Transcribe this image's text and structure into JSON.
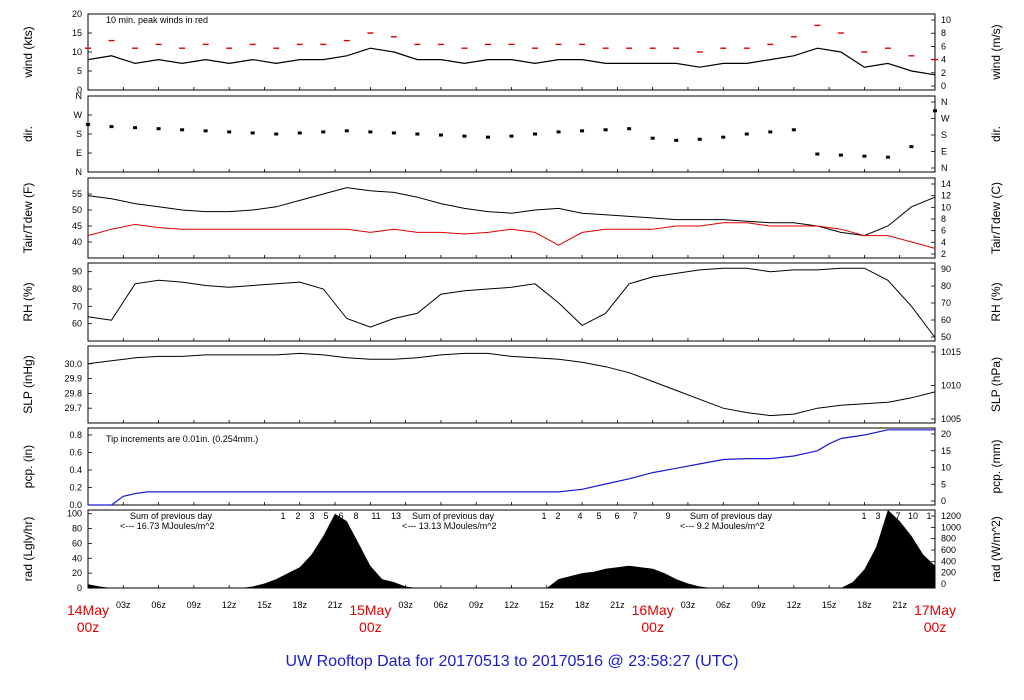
{
  "title": "UW Rooftop Data for 20170513  to  20170516 @ 23:58:27  (UTC)",
  "colors": {
    "black": "#000000",
    "red": "#e00000",
    "blue": "#1a1ad0",
    "purple": "#9a22d6"
  },
  "time_axis": {
    "range_hours": [
      0,
      72
    ],
    "hour_ticks": [
      "03z",
      "06z",
      "09z",
      "12z",
      "15z",
      "18z",
      "21z"
    ],
    "dates": [
      {
        "hour": 0,
        "label": "14May",
        "sub": "00z"
      },
      {
        "hour": 24,
        "label": "15May",
        "sub": "00z"
      },
      {
        "hour": 48,
        "label": "16May",
        "sub": "00z"
      },
      {
        "hour": 72,
        "label": "17May",
        "sub": "00z"
      }
    ]
  },
  "chart_data": [
    {
      "type": "line",
      "panel": "wind",
      "ylabel_left": "wind (kts)",
      "ylabel_right": "wind (m/s)",
      "ylim": [
        0,
        20
      ],
      "yticks_left": [
        0,
        5,
        10,
        15,
        20
      ],
      "yticks_right": [
        0,
        2,
        4,
        6,
        8,
        10
      ],
      "annotation": "10 min. peak winds in red",
      "x": [
        0,
        2,
        4,
        6,
        8,
        10,
        12,
        14,
        16,
        18,
        20,
        22,
        24,
        26,
        28,
        30,
        32,
        34,
        36,
        38,
        40,
        42,
        44,
        46,
        48,
        50,
        52,
        54,
        56,
        58,
        60,
        62,
        64,
        66,
        68,
        70,
        72
      ],
      "series": [
        {
          "values": [
            8,
            9,
            7,
            8,
            7,
            8,
            7,
            8,
            7,
            8,
            8,
            9,
            11,
            10,
            8,
            8,
            7,
            8,
            8,
            7,
            8,
            8,
            7,
            7,
            7,
            7,
            6,
            7,
            7,
            8,
            9,
            11,
            10,
            6,
            7,
            5,
            4
          ]
        },
        {
          "values": [
            11,
            13,
            11,
            12,
            11,
            12,
            11,
            12,
            11,
            12,
            12,
            13,
            15,
            14,
            12,
            12,
            11,
            12,
            12,
            11,
            12,
            12,
            11,
            11,
            11,
            11,
            10,
            11,
            11,
            12,
            14,
            17,
            15,
            10,
            11,
            9,
            8
          ]
        }
      ]
    },
    {
      "type": "scatter",
      "panel": "dir",
      "ylabel_left": "dir.",
      "ylabel_right": "dir.",
      "ylim": [
        0,
        360
      ],
      "yticks_left": [
        "N",
        "E",
        "S",
        "W",
        "N"
      ],
      "yticks_right": [
        "N",
        "E",
        "S",
        "W",
        "N"
      ],
      "x": [
        0,
        2,
        4,
        6,
        8,
        10,
        12,
        14,
        16,
        18,
        20,
        22,
        24,
        26,
        28,
        30,
        32,
        34,
        36,
        38,
        40,
        42,
        44,
        46,
        48,
        50,
        52,
        54,
        56,
        58,
        60,
        62,
        64,
        66,
        68,
        70,
        72
      ],
      "values": [
        225,
        215,
        210,
        205,
        200,
        195,
        190,
        185,
        180,
        185,
        190,
        195,
        190,
        185,
        180,
        175,
        170,
        165,
        170,
        180,
        190,
        195,
        200,
        205,
        160,
        150,
        155,
        165,
        180,
        190,
        200,
        85,
        80,
        75,
        70,
        120,
        290
      ]
    },
    {
      "type": "line",
      "panel": "temp",
      "ylabel_left": "Tair/Tdew (F)",
      "ylabel_right": "Tair/Tdew (C)",
      "ylim": [
        35,
        60
      ],
      "yticks_left": [
        40,
        45,
        50,
        55
      ],
      "yticks_right": [
        2,
        4,
        6,
        8,
        10,
        12,
        14
      ],
      "x": [
        0,
        2,
        4,
        6,
        8,
        10,
        12,
        14,
        16,
        18,
        20,
        22,
        24,
        26,
        28,
        30,
        32,
        34,
        36,
        38,
        40,
        42,
        44,
        46,
        48,
        50,
        52,
        54,
        56,
        58,
        60,
        62,
        64,
        66,
        68,
        70,
        72
      ],
      "series": [
        {
          "values": [
            54.5,
            53.5,
            52,
            51,
            50,
            49.5,
            49.5,
            50,
            51,
            53,
            55,
            57,
            56,
            55.5,
            54,
            52,
            50.5,
            49.5,
            49,
            50,
            50.5,
            49,
            48.5,
            48,
            47.5,
            47,
            47,
            47,
            46.5,
            46,
            46,
            45,
            43,
            42,
            45,
            51,
            54
          ]
        },
        {
          "values": [
            42,
            44,
            45.5,
            44.5,
            44,
            44,
            44,
            44,
            44,
            44,
            44,
            44,
            43,
            44,
            43,
            43,
            42.5,
            43,
            44,
            43,
            39,
            43,
            44,
            44,
            44,
            45,
            45,
            46,
            46,
            45,
            45,
            45,
            44,
            42,
            42,
            40,
            38
          ]
        }
      ]
    },
    {
      "type": "line",
      "panel": "rh",
      "ylabel_left": "RH (%)",
      "ylabel_right": "RH (%)",
      "ylim": [
        50,
        95
      ],
      "yticks_left": [
        60,
        70,
        80,
        90
      ],
      "yticks_right": [
        50,
        60,
        70,
        80,
        90
      ],
      "x": [
        0,
        2,
        4,
        6,
        8,
        10,
        12,
        14,
        16,
        18,
        20,
        22,
        24,
        26,
        28,
        30,
        32,
        34,
        36,
        38,
        40,
        42,
        44,
        46,
        48,
        50,
        52,
        54,
        56,
        58,
        60,
        62,
        64,
        66,
        68,
        70,
        72
      ],
      "values": [
        64,
        62,
        83,
        85,
        84,
        82,
        81,
        82,
        83,
        84,
        80,
        63,
        58,
        63,
        66,
        77,
        79,
        80,
        81,
        83,
        72,
        59,
        66,
        83,
        87,
        89,
        91,
        92,
        92,
        90,
        91,
        91,
        92,
        92,
        85,
        70,
        52
      ]
    },
    {
      "type": "line",
      "panel": "slp",
      "ylabel_left": "SLP (inHg)",
      "ylabel_right": "SLP (hPa)",
      "ylim": [
        29.6,
        30.12
      ],
      "yticks_left": [
        "29.7",
        "29.8",
        "29.9",
        "30.0"
      ],
      "yticks_right": [
        1005,
        1010,
        1015
      ],
      "x": [
        0,
        2,
        4,
        6,
        8,
        10,
        12,
        14,
        16,
        18,
        20,
        22,
        24,
        26,
        28,
        30,
        32,
        34,
        36,
        38,
        40,
        42,
        44,
        46,
        48,
        50,
        52,
        54,
        56,
        58,
        60,
        62,
        64,
        66,
        68,
        70,
        72
      ],
      "values": [
        30.0,
        30.02,
        30.04,
        30.05,
        30.05,
        30.06,
        30.06,
        30.06,
        30.06,
        30.07,
        30.06,
        30.04,
        30.03,
        30.03,
        30.04,
        30.06,
        30.07,
        30.07,
        30.05,
        30.04,
        30.03,
        30.01,
        29.98,
        29.94,
        29.88,
        29.82,
        29.76,
        29.7,
        29.67,
        29.65,
        29.66,
        29.7,
        29.72,
        29.73,
        29.74,
        29.77,
        29.81
      ]
    },
    {
      "type": "line",
      "panel": "pcp",
      "ylabel_left": "pcp. (in)",
      "ylabel_right": "pcp. (mm)",
      "ylim": [
        0,
        0.88
      ],
      "yticks_left": [
        "0.0",
        "0.2",
        "0.4",
        "0.6",
        "0.8"
      ],
      "yticks_right": [
        0,
        5,
        10,
        15,
        20
      ],
      "annotation": "Tip increments are 0.01in. (0.254mm.)",
      "x": [
        0,
        1,
        2,
        3,
        4,
        5,
        6,
        12,
        18,
        24,
        30,
        36,
        40,
        42,
        44,
        46,
        48,
        50,
        52,
        54,
        56,
        58,
        60,
        62,
        63,
        64,
        66,
        68,
        70,
        72
      ],
      "values": [
        0,
        0,
        0,
        0.1,
        0.13,
        0.15,
        0.15,
        0.15,
        0.15,
        0.15,
        0.15,
        0.15,
        0.15,
        0.18,
        0.24,
        0.3,
        0.37,
        0.42,
        0.47,
        0.52,
        0.53,
        0.53,
        0.56,
        0.62,
        0.7,
        0.76,
        0.8,
        0.86,
        0.86,
        0.86
      ]
    },
    {
      "type": "area",
      "panel": "rad",
      "ylabel_left": "rad (Lgly/hr)",
      "ylabel_right": "rad (W/m^2)",
      "ylim": [
        0,
        105
      ],
      "yticks_left": [
        0,
        20,
        40,
        60,
        80,
        100
      ],
      "yticks_right": [
        0,
        200,
        400,
        600,
        800,
        1000,
        1200
      ],
      "x": [
        0,
        1,
        2,
        3,
        4,
        5,
        6,
        7,
        8,
        9,
        10,
        11,
        12,
        13,
        14,
        15,
        16,
        17,
        18,
        19,
        20,
        21,
        22,
        23,
        24,
        25,
        26,
        27,
        28,
        29,
        30,
        31,
        32,
        33,
        34,
        35,
        36,
        37,
        38,
        39,
        40,
        41,
        42,
        43,
        44,
        45,
        46,
        47,
        48,
        49,
        50,
        51,
        52,
        53,
        54,
        55,
        56,
        57,
        58,
        59,
        60,
        61,
        62,
        63,
        64,
        65,
        66,
        67,
        68,
        69,
        70,
        71,
        72
      ],
      "values": [
        5,
        2,
        0,
        0,
        0,
        0,
        0,
        0,
        0,
        0,
        0,
        0,
        0,
        0,
        2,
        6,
        12,
        20,
        28,
        45,
        70,
        100,
        90,
        60,
        30,
        12,
        8,
        2,
        0,
        0,
        0,
        0,
        0,
        0,
        0,
        0,
        0,
        0,
        0,
        0,
        12,
        16,
        20,
        22,
        26,
        28,
        30,
        28,
        26,
        20,
        12,
        6,
        2,
        0,
        0,
        0,
        0,
        0,
        0,
        0,
        0,
        0,
        0,
        0,
        0,
        8,
        25,
        55,
        105,
        90,
        70,
        45,
        30
      ],
      "annotations": [
        {
          "text": "Sum of previous day",
          "sub": "<--- 16.73 MJoules/m^2"
        },
        {
          "text": "Sum of previous day",
          "sub": "<--- 13.13 MJoules/m^2"
        },
        {
          "text": "Sum of previous day",
          "sub": "<--- 9.2 MJoules/m^2"
        }
      ],
      "hour_labels": [
        "1",
        "2",
        "3",
        "5",
        "6",
        "8",
        "11",
        "13",
        "1",
        "2",
        "4",
        "5",
        "6",
        "7",
        "9",
        "1",
        "3",
        "7",
        "10",
        "1"
      ]
    }
  ]
}
